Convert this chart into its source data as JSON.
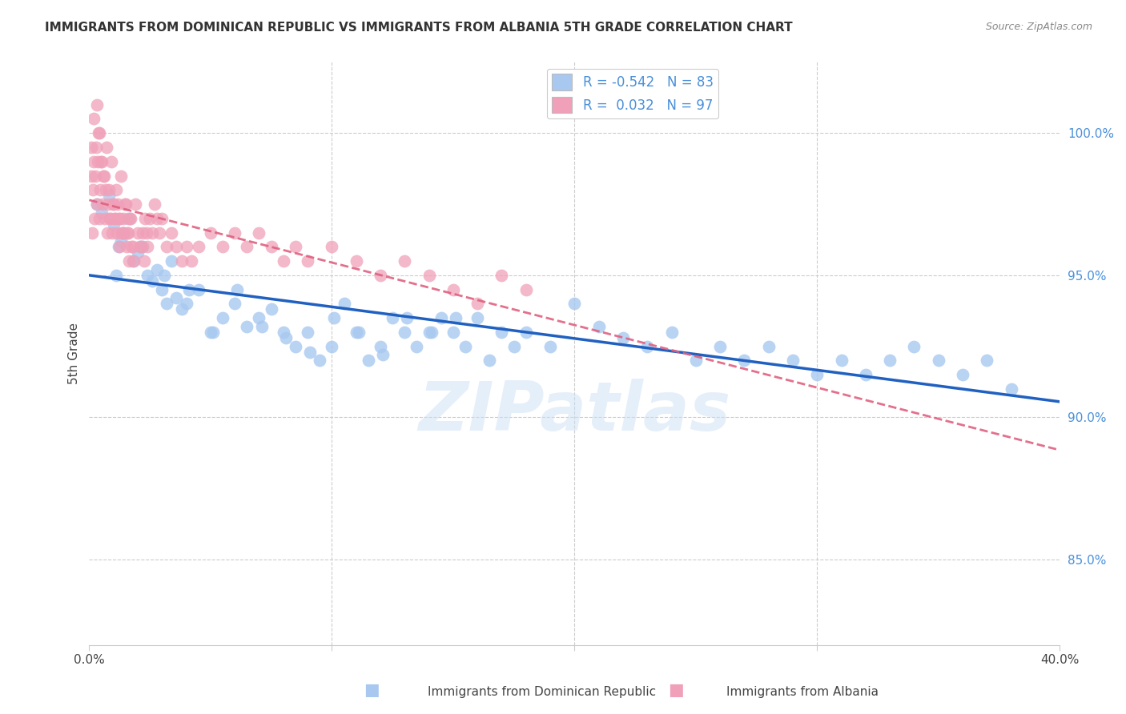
{
  "title": "IMMIGRANTS FROM DOMINICAN REPUBLIC VS IMMIGRANTS FROM ALBANIA 5TH GRADE CORRELATION CHART",
  "source": "Source: ZipAtlas.com",
  "ylabel": "5th Grade",
  "yticks": [
    85.0,
    90.0,
    95.0,
    100.0
  ],
  "xlim": [
    0.0,
    40.0
  ],
  "ylim": [
    82.0,
    102.5
  ],
  "blue_R": "-0.542",
  "blue_N": "83",
  "pink_R": "0.032",
  "pink_N": "97",
  "blue_color": "#a8c8f0",
  "blue_line_color": "#2060c0",
  "pink_color": "#f0a0b8",
  "pink_line_color": "#e06080",
  "legend_label_blue": "Immigrants from Dominican Republic",
  "legend_label_pink": "Immigrants from Albania",
  "watermark": "ZIPatlas",
  "blue_scatter_x": [
    0.3,
    0.5,
    0.8,
    1.0,
    1.2,
    1.4,
    1.6,
    1.8,
    2.0,
    2.2,
    2.4,
    2.6,
    2.8,
    3.0,
    3.2,
    3.4,
    3.6,
    3.8,
    4.0,
    4.5,
    5.0,
    5.5,
    6.0,
    6.5,
    7.0,
    7.5,
    8.0,
    8.5,
    9.0,
    9.5,
    10.0,
    10.5,
    11.0,
    11.5,
    12.0,
    12.5,
    13.0,
    13.5,
    14.0,
    14.5,
    15.0,
    15.5,
    16.0,
    16.5,
    17.0,
    17.5,
    18.0,
    19.0,
    20.0,
    21.0,
    22.0,
    23.0,
    24.0,
    25.0,
    26.0,
    27.0,
    28.0,
    29.0,
    30.0,
    31.0,
    32.0,
    33.0,
    34.0,
    35.0,
    36.0,
    37.0,
    38.0,
    1.1,
    1.3,
    2.1,
    3.1,
    4.1,
    5.1,
    6.1,
    7.1,
    8.1,
    9.1,
    10.1,
    11.1,
    12.1,
    13.1,
    14.1,
    15.1
  ],
  "blue_scatter_y": [
    97.5,
    97.2,
    97.8,
    96.8,
    96.0,
    96.5,
    97.0,
    95.5,
    95.8,
    96.0,
    95.0,
    94.8,
    95.2,
    94.5,
    94.0,
    95.5,
    94.2,
    93.8,
    94.0,
    94.5,
    93.0,
    93.5,
    94.0,
    93.2,
    93.5,
    93.8,
    93.0,
    92.5,
    93.0,
    92.0,
    92.5,
    94.0,
    93.0,
    92.0,
    92.5,
    93.5,
    93.0,
    92.5,
    93.0,
    93.5,
    93.0,
    92.5,
    93.5,
    92.0,
    93.0,
    92.5,
    93.0,
    92.5,
    94.0,
    93.2,
    92.8,
    92.5,
    93.0,
    92.0,
    92.5,
    92.0,
    92.5,
    92.0,
    91.5,
    92.0,
    91.5,
    92.0,
    92.5,
    92.0,
    91.5,
    92.0,
    91.0,
    95.0,
    96.2,
    96.0,
    95.0,
    94.5,
    93.0,
    94.5,
    93.2,
    92.8,
    92.3,
    93.5,
    93.0,
    92.2,
    93.5,
    93.0,
    93.5
  ],
  "pink_scatter_x": [
    0.1,
    0.2,
    0.3,
    0.4,
    0.5,
    0.6,
    0.7,
    0.8,
    0.9,
    1.0,
    1.1,
    1.2,
    1.3,
    1.4,
    1.5,
    1.6,
    1.7,
    1.8,
    1.9,
    2.0,
    2.1,
    2.2,
    2.3,
    2.4,
    2.5,
    2.6,
    2.7,
    2.8,
    2.9,
    3.0,
    3.2,
    3.4,
    3.6,
    3.8,
    4.0,
    4.2,
    4.5,
    5.0,
    5.5,
    6.0,
    6.5,
    7.0,
    7.5,
    8.0,
    8.5,
    9.0,
    10.0,
    11.0,
    12.0,
    13.0,
    14.0,
    15.0,
    16.0,
    17.0,
    18.0,
    0.15,
    0.25,
    0.35,
    0.45,
    0.55,
    0.65,
    0.75,
    0.85,
    0.95,
    1.05,
    1.15,
    1.25,
    1.35,
    1.45,
    1.55,
    1.65,
    1.75,
    1.85,
    0.12,
    0.22,
    0.32,
    0.42,
    2.15,
    2.25,
    2.35,
    0.08,
    0.18,
    0.28,
    0.38,
    0.48,
    0.58,
    0.68,
    0.78,
    0.88,
    0.98,
    1.08,
    1.18,
    1.28,
    1.38,
    1.48,
    1.58,
    1.68
  ],
  "pink_scatter_y": [
    99.5,
    100.5,
    101.0,
    100.0,
    99.0,
    98.5,
    99.5,
    98.0,
    99.0,
    97.5,
    98.0,
    97.0,
    98.5,
    97.0,
    97.5,
    96.5,
    97.0,
    96.0,
    97.5,
    96.5,
    96.0,
    96.5,
    97.0,
    96.0,
    97.0,
    96.5,
    97.5,
    97.0,
    96.5,
    97.0,
    96.0,
    96.5,
    96.0,
    95.5,
    96.0,
    95.5,
    96.0,
    96.5,
    96.0,
    96.5,
    96.0,
    96.5,
    96.0,
    95.5,
    96.0,
    95.5,
    96.0,
    95.5,
    95.0,
    95.5,
    95.0,
    94.5,
    94.0,
    95.0,
    94.5,
    98.0,
    98.5,
    99.0,
    98.0,
    97.5,
    97.0,
    96.5,
    97.0,
    96.5,
    97.0,
    96.5,
    96.0,
    96.5,
    96.5,
    96.0,
    95.5,
    96.0,
    95.5,
    96.5,
    97.0,
    97.5,
    97.0,
    96.0,
    95.5,
    96.5,
    98.5,
    99.0,
    99.5,
    100.0,
    99.0,
    98.5,
    98.0,
    97.5,
    97.0,
    97.5,
    97.0,
    97.5,
    97.0,
    96.5,
    97.5,
    96.5,
    97.0
  ]
}
